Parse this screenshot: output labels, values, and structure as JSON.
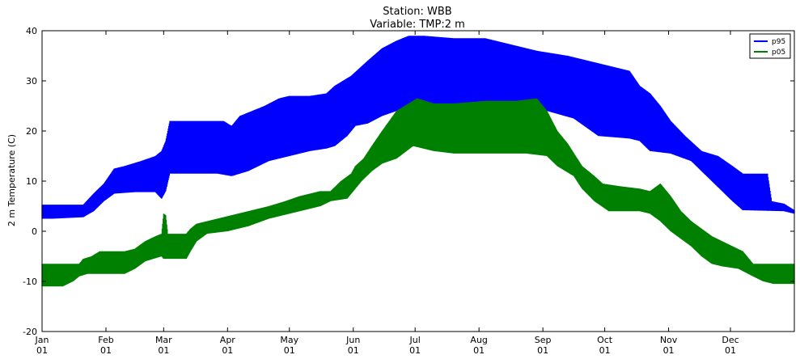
{
  "chart_data": {
    "type": "area",
    "title": "Station: WBB",
    "subtitle": "Variable: TMP:2 m",
    "ylabel": "2 m Temperature (C)",
    "xlabel": "",
    "ylim": [
      -20,
      40
    ],
    "xlim": [
      0,
      365
    ],
    "yticks": [
      "-20",
      "-10",
      "0",
      "10",
      "20",
      "30",
      "40"
    ],
    "xticks": [
      {
        "x": 0,
        "month": "Jan",
        "day": "01"
      },
      {
        "x": 31,
        "month": "Feb",
        "day": "01"
      },
      {
        "x": 59,
        "month": "Mar",
        "day": "01"
      },
      {
        "x": 90,
        "month": "Apr",
        "day": "01"
      },
      {
        "x": 120,
        "month": "May",
        "day": "01"
      },
      {
        "x": 151,
        "month": "Jun",
        "day": "01"
      },
      {
        "x": 181,
        "month": "Jul",
        "day": "01"
      },
      {
        "x": 212,
        "month": "Aug",
        "day": "01"
      },
      {
        "x": 243,
        "month": "Sep",
        "day": "01"
      },
      {
        "x": 273,
        "month": "Oct",
        "day": "01"
      },
      {
        "x": 304,
        "month": "Nov",
        "day": "01"
      },
      {
        "x": 334,
        "month": "Dec",
        "day": "01"
      }
    ],
    "grid": false,
    "legend_position": "top-right",
    "series": [
      {
        "name": "p95",
        "color": "#0000ff",
        "low": [
          [
            0,
            2.5
          ],
          [
            5,
            2.5
          ],
          [
            20,
            2.8
          ],
          [
            25,
            4
          ],
          [
            30,
            6
          ],
          [
            35,
            7.5
          ],
          [
            45,
            7.8
          ],
          [
            55,
            7.8
          ],
          [
            58,
            6.5
          ],
          [
            60,
            8
          ],
          [
            62,
            11.5
          ],
          [
            80,
            11.5
          ],
          [
            85,
            11.5
          ],
          [
            92,
            11
          ],
          [
            100,
            12
          ],
          [
            110,
            14
          ],
          [
            120,
            15
          ],
          [
            130,
            16
          ],
          [
            138,
            16.5
          ],
          [
            142,
            17
          ],
          [
            148,
            19
          ],
          [
            152,
            21
          ],
          [
            158,
            21.5
          ],
          [
            165,
            23
          ],
          [
            172,
            24
          ],
          [
            178,
            25
          ],
          [
            185,
            25.5
          ],
          [
            200,
            25
          ],
          [
            215,
            25
          ],
          [
            235,
            25
          ],
          [
            245,
            24
          ],
          [
            258,
            22.5
          ],
          [
            270,
            19
          ],
          [
            285,
            18.5
          ],
          [
            290,
            18
          ],
          [
            295,
            16
          ],
          [
            305,
            15.5
          ],
          [
            315,
            14
          ],
          [
            325,
            10
          ],
          [
            335,
            6
          ],
          [
            340,
            4.2
          ],
          [
            360,
            4
          ],
          [
            365,
            3.5
          ]
        ],
        "high": [
          [
            0,
            5.3
          ],
          [
            5,
            5.3
          ],
          [
            20,
            5.3
          ],
          [
            25,
            7.5
          ],
          [
            30,
            9.5
          ],
          [
            35,
            12.5
          ],
          [
            40,
            13
          ],
          [
            48,
            14
          ],
          [
            55,
            15
          ],
          [
            58,
            16
          ],
          [
            60,
            18
          ],
          [
            62,
            22
          ],
          [
            80,
            22
          ],
          [
            88,
            22
          ],
          [
            92,
            21
          ],
          [
            96,
            23
          ],
          [
            102,
            24
          ],
          [
            108,
            25
          ],
          [
            115,
            26.5
          ],
          [
            120,
            27
          ],
          [
            130,
            27
          ],
          [
            138,
            27.5
          ],
          [
            142,
            29
          ],
          [
            150,
            31
          ],
          [
            158,
            34
          ],
          [
            165,
            36.5
          ],
          [
            172,
            38
          ],
          [
            178,
            39
          ],
          [
            185,
            39
          ],
          [
            200,
            38.5
          ],
          [
            215,
            38.5
          ],
          [
            230,
            37
          ],
          [
            240,
            36
          ],
          [
            255,
            35
          ],
          [
            265,
            34
          ],
          [
            275,
            33
          ],
          [
            285,
            32
          ],
          [
            290,
            29
          ],
          [
            295,
            27.5
          ],
          [
            300,
            25
          ],
          [
            305,
            22
          ],
          [
            312,
            19
          ],
          [
            320,
            16
          ],
          [
            328,
            15
          ],
          [
            335,
            13
          ],
          [
            340,
            11.5
          ],
          [
            352,
            11.5
          ],
          [
            354,
            6
          ],
          [
            360,
            5.5
          ],
          [
            365,
            4.2
          ]
        ]
      },
      {
        "name": "p05",
        "color": "#008000",
        "low": [
          [
            0,
            -11
          ],
          [
            10,
            -11
          ],
          [
            15,
            -10
          ],
          [
            18,
            -9
          ],
          [
            22,
            -8.5
          ],
          [
            40,
            -8.5
          ],
          [
            45,
            -7.5
          ],
          [
            50,
            -6
          ],
          [
            58,
            -5
          ],
          [
            59,
            -5.5
          ],
          [
            60,
            -5.5
          ],
          [
            61,
            -5.5
          ],
          [
            70,
            -5.5
          ],
          [
            72,
            -4
          ],
          [
            75,
            -2
          ],
          [
            80,
            -0.5
          ],
          [
            90,
            0
          ],
          [
            100,
            1
          ],
          [
            110,
            2.5
          ],
          [
            120,
            3.5
          ],
          [
            130,
            4.5
          ],
          [
            135,
            5
          ],
          [
            140,
            6
          ],
          [
            148,
            6.5
          ],
          [
            150,
            7.5
          ],
          [
            155,
            10
          ],
          [
            160,
            12
          ],
          [
            165,
            13.5
          ],
          [
            172,
            14.5
          ],
          [
            180,
            17
          ],
          [
            190,
            16
          ],
          [
            200,
            15.5
          ],
          [
            210,
            15.5
          ],
          [
            220,
            15.5
          ],
          [
            235,
            15.5
          ],
          [
            245,
            15
          ],
          [
            250,
            13
          ],
          [
            258,
            11
          ],
          [
            262,
            8.5
          ],
          [
            268,
            6
          ],
          [
            275,
            4
          ],
          [
            290,
            4
          ],
          [
            295,
            3.5
          ],
          [
            300,
            2
          ],
          [
            305,
            0
          ],
          [
            310,
            -1.5
          ],
          [
            315,
            -3
          ],
          [
            320,
            -5
          ],
          [
            325,
            -6.5
          ],
          [
            330,
            -7
          ],
          [
            338,
            -7.5
          ],
          [
            345,
            -9
          ],
          [
            350,
            -10
          ],
          [
            355,
            -10.5
          ],
          [
            365,
            -10.5
          ]
        ],
        "high": [
          [
            0,
            -6.5
          ],
          [
            10,
            -6.5
          ],
          [
            18,
            -6.5
          ],
          [
            20,
            -5.5
          ],
          [
            24,
            -5
          ],
          [
            28,
            -4
          ],
          [
            40,
            -4
          ],
          [
            45,
            -3.5
          ],
          [
            50,
            -2
          ],
          [
            55,
            -1
          ],
          [
            58,
            -0.5
          ],
          [
            59,
            3.5
          ],
          [
            60,
            3.2
          ],
          [
            61,
            -0.5
          ],
          [
            70,
            -0.5
          ],
          [
            72,
            0.5
          ],
          [
            75,
            1.5
          ],
          [
            80,
            2
          ],
          [
            90,
            3
          ],
          [
            100,
            4
          ],
          [
            110,
            5
          ],
          [
            118,
            6
          ],
          [
            125,
            7
          ],
          [
            130,
            7.5
          ],
          [
            135,
            8
          ],
          [
            140,
            8
          ],
          [
            145,
            10
          ],
          [
            150,
            11.5
          ],
          [
            152,
            13
          ],
          [
            156,
            14.5
          ],
          [
            160,
            17
          ],
          [
            165,
            20
          ],
          [
            172,
            24
          ],
          [
            178,
            25.5
          ],
          [
            182,
            26.5
          ],
          [
            190,
            25.5
          ],
          [
            200,
            25.5
          ],
          [
            215,
            26
          ],
          [
            230,
            26
          ],
          [
            240,
            26.5
          ],
          [
            245,
            24
          ],
          [
            250,
            20
          ],
          [
            255,
            17.5
          ],
          [
            262,
            13
          ],
          [
            268,
            11
          ],
          [
            272,
            9.5
          ],
          [
            280,
            9
          ],
          [
            290,
            8.5
          ],
          [
            295,
            8
          ],
          [
            300,
            9.5
          ],
          [
            305,
            7
          ],
          [
            310,
            4
          ],
          [
            315,
            2
          ],
          [
            320,
            0.5
          ],
          [
            325,
            -1
          ],
          [
            330,
            -2
          ],
          [
            335,
            -3
          ],
          [
            340,
            -4
          ],
          [
            345,
            -6.5
          ],
          [
            355,
            -6.5
          ],
          [
            365,
            -6.5
          ]
        ]
      }
    ]
  }
}
